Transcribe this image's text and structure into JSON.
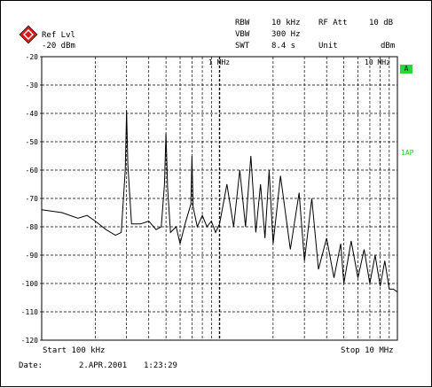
{
  "header": {
    "ref_label": "Ref Lvl",
    "ref_value": "-20 dBm",
    "rbw_label": "RBW",
    "rbw_value": "10 kHz",
    "vbw_label": "VBW",
    "vbw_value": "300 Hz",
    "swt_label": "SWT",
    "swt_value": "8.4 s",
    "rfatt_label": "RF Att",
    "rfatt_value": "10 dB",
    "unit_label": "Unit",
    "unit_value": "dBm"
  },
  "side": {
    "marker_a": "A",
    "trace_mode": "1AP"
  },
  "footer": {
    "start": "Start 100 kHz",
    "stop": "Stop 10 MHz",
    "date_label": "Date:",
    "date_value": "2.APR.2001",
    "time_value": "1:23:29"
  },
  "colors": {
    "marker_bg": "#26d93a",
    "trace": "#000000",
    "grid": "#000000"
  },
  "chart_data": {
    "type": "line",
    "title": "",
    "x_scale": "log",
    "xlim": [
      100000,
      10000000
    ],
    "ylim": [
      -120,
      -20
    ],
    "grid": true,
    "x_tick_labels": [
      "1 MHz",
      "10 MHz"
    ],
    "y_tick_labels": [
      "-20",
      "-30",
      "-40",
      "-50",
      "-60",
      "-70",
      "-80",
      "-90",
      "-100",
      "-110",
      "-120"
    ],
    "series": [
      {
        "values_note_free": true,
        "x": [
          100000,
          130000,
          160000,
          180000,
          200000,
          230000,
          260000,
          280000,
          295000,
          300000,
          305000,
          320000,
          360000,
          400000,
          440000,
          470000,
          490000,
          500000,
          510000,
          530000,
          570000,
          600000,
          640000,
          690000,
          700000,
          710000,
          750000,
          800000,
          850000,
          900000,
          950000,
          1000000,
          1100000,
          1200000,
          1300000,
          1400000,
          1500000,
          1600000,
          1700000,
          1800000,
          1900000,
          2000000,
          2200000,
          2500000,
          2800000,
          3000000,
          3300000,
          3600000,
          4000000,
          4400000,
          4800000,
          5000000,
          5500000,
          6000000,
          6500000,
          7000000,
          7500000,
          8000000,
          8500000,
          9000000,
          9500000,
          10000000
        ],
        "y": [
          -74,
          -75,
          -77,
          -76,
          -78,
          -81,
          -83,
          -82,
          -60,
          -39,
          -58,
          -79,
          -79,
          -78,
          -81,
          -80,
          -65,
          -47,
          -66,
          -82,
          -80,
          -86,
          -79,
          -72,
          -55,
          -73,
          -80,
          -76,
          -80,
          -78,
          -82,
          -79,
          -65,
          -80,
          -60,
          -80,
          -55,
          -82,
          -65,
          -84,
          -60,
          -86,
          -62,
          -88,
          -68,
          -92,
          -70,
          -95,
          -84,
          -98,
          -86,
          -100,
          -85,
          -98,
          -88,
          -100,
          -90,
          -101,
          -92,
          -102,
          -102,
          -103
        ]
      }
    ]
  }
}
